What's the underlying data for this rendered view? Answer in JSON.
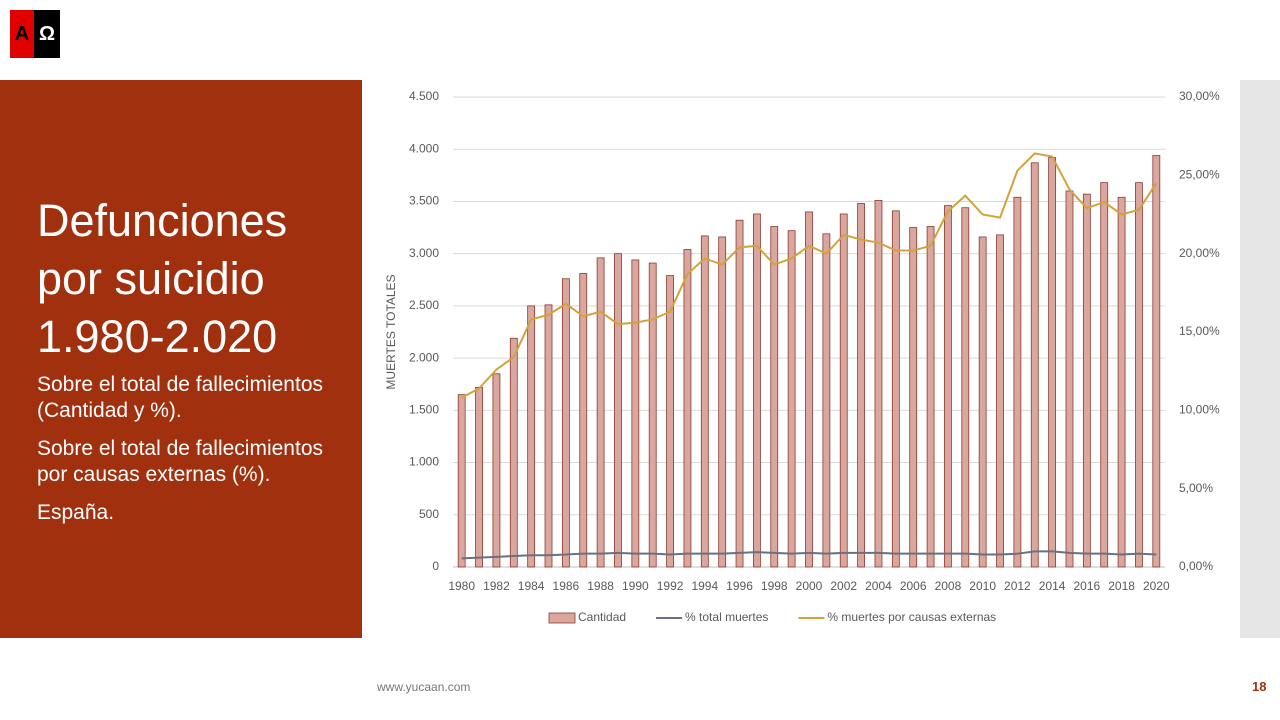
{
  "logo": [
    "A",
    "Ω"
  ],
  "heading": "Defunciones por suicidio 1.980-2.020",
  "paragraphs": [
    "Sobre el total de fallecimientos (Cantidad y %).",
    "Sobre el total de fallecimientos por causas externas (%).",
    "España."
  ],
  "footer": {
    "url": "www.yucaan.com",
    "page": "18"
  },
  "chart_data": {
    "type": "bar",
    "y_label": "MUERTES TOTALES",
    "categories": [
      "1980",
      null,
      "1982",
      null,
      "1984",
      null,
      "1986",
      null,
      "1988",
      null,
      "1990",
      null,
      "1992",
      null,
      "1994",
      null,
      "1996",
      null,
      "1998",
      null,
      "2000",
      null,
      "2002",
      null,
      "2004",
      null,
      "2006",
      null,
      "2008",
      null,
      "2010",
      null,
      "2012",
      null,
      "2014",
      null,
      "2016",
      null,
      "2018",
      null,
      "2020"
    ],
    "series": [
      {
        "name": "Cantidad",
        "type": "bar",
        "color": "#d9a79e",
        "values": [
          1650,
          1720,
          1850,
          2190,
          2500,
          2510,
          2760,
          2810,
          2960,
          3000,
          2940,
          2910,
          2790,
          3040,
          3170,
          3160,
          3320,
          3380,
          3260,
          3220,
          3400,
          3190,
          3380,
          3480,
          3510,
          3410,
          3250,
          3260,
          3460,
          3440,
          3160,
          3180,
          3540,
          3870,
          3920,
          3600,
          3570,
          3680,
          3540,
          3680,
          3940
        ]
      },
      {
        "name": "% total muertes",
        "type": "line",
        "axis": "y2",
        "color": "#6b6f80",
        "values": [
          0.55,
          0.6,
          0.65,
          0.7,
          0.75,
          0.75,
          0.8,
          0.85,
          0.85,
          0.9,
          0.85,
          0.85,
          0.8,
          0.85,
          0.85,
          0.85,
          0.9,
          0.95,
          0.9,
          0.85,
          0.9,
          0.85,
          0.9,
          0.9,
          0.9,
          0.85,
          0.85,
          0.85,
          0.85,
          0.85,
          0.8,
          0.8,
          0.85,
          1.0,
          1.0,
          0.9,
          0.85,
          0.85,
          0.8,
          0.85,
          0.8
        ]
      },
      {
        "name": "% muertes por causas externas",
        "type": "line",
        "axis": "y2",
        "color": "#d4a23a",
        "values": [
          10.8,
          11.4,
          12.6,
          13.4,
          15.8,
          16.1,
          16.8,
          16.0,
          16.3,
          15.5,
          15.6,
          15.8,
          16.3,
          18.7,
          19.7,
          19.3,
          20.4,
          20.5,
          19.3,
          19.7,
          20.5,
          20.0,
          21.2,
          20.9,
          20.7,
          20.2,
          20.2,
          20.5,
          22.7,
          23.7,
          22.5,
          22.3,
          25.3,
          26.4,
          26.2,
          24.1,
          22.9,
          23.3,
          22.5,
          22.8,
          24.5
        ]
      }
    ],
    "ylim": [
      0,
      4500
    ],
    "yticks": [
      0,
      500,
      {
        "value": 1000,
        "label": "1.000"
      },
      {
        "value": 1500,
        "label": "1.500"
      },
      {
        "value": 2000,
        "label": "2.000"
      },
      {
        "value": 2500,
        "label": "2.500"
      },
      {
        "value": 3000,
        "label": "3.000"
      },
      {
        "value": 3500,
        "label": "3.500"
      },
      {
        "value": 4000,
        "label": "4.000"
      },
      {
        "value": 4500,
        "label": "4.500"
      }
    ],
    "y2lim": [
      0,
      30
    ],
    "y2ticks": [
      {
        "value": 0,
        "label": "0,00%"
      },
      {
        "value": 5,
        "label": "5,00%"
      },
      {
        "value": 10,
        "label": "10,00%"
      },
      {
        "value": 15,
        "label": "15,00%"
      },
      {
        "value": 20,
        "label": "20,00%"
      },
      {
        "value": 25,
        "label": "25,00%"
      },
      {
        "value": 30,
        "label": "30,00%"
      }
    ],
    "grid": true,
    "legend": "bottom"
  }
}
